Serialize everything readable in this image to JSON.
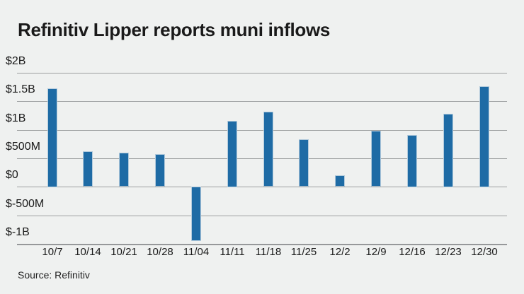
{
  "title": "Refinitiv Lipper reports muni inflows",
  "source": "Source: Refinitiv",
  "colors": {
    "background": "#eff1f0",
    "bar_fill": "#1e6ba5",
    "bar_edge": "#b3cbdc",
    "gridline": "#9c9fa0",
    "text": "#1a1a1a"
  },
  "chart_data": {
    "type": "bar",
    "title": "Refinitiv Lipper reports muni inflows",
    "unit": "USD millions",
    "categories": [
      "10/7",
      "10/14",
      "10/21",
      "10/28",
      "11/04",
      "11/11",
      "11/18",
      "11/25",
      "12/2",
      "12/9",
      "12/16",
      "12/23",
      "12/30"
    ],
    "values": [
      1730,
      620,
      600,
      570,
      -950,
      1160,
      1320,
      830,
      200,
      980,
      915,
      1285,
      1770
    ],
    "y_ticks": [
      {
        "label": "$2B",
        "value": 2000
      },
      {
        "label": "$1.5B",
        "value": 1500
      },
      {
        "label": "$1B",
        "value": 1000
      },
      {
        "label": "$500M",
        "value": 500
      },
      {
        "label": "$0",
        "value": 0
      },
      {
        "label": "$-500M",
        "value": -500
      },
      {
        "label": "$-1B",
        "value": -1000
      }
    ],
    "ylim": [
      -1000,
      2000
    ],
    "grid": true,
    "legend": false,
    "xlabel": "",
    "ylabel": "",
    "source": "Source: Refinitiv"
  }
}
